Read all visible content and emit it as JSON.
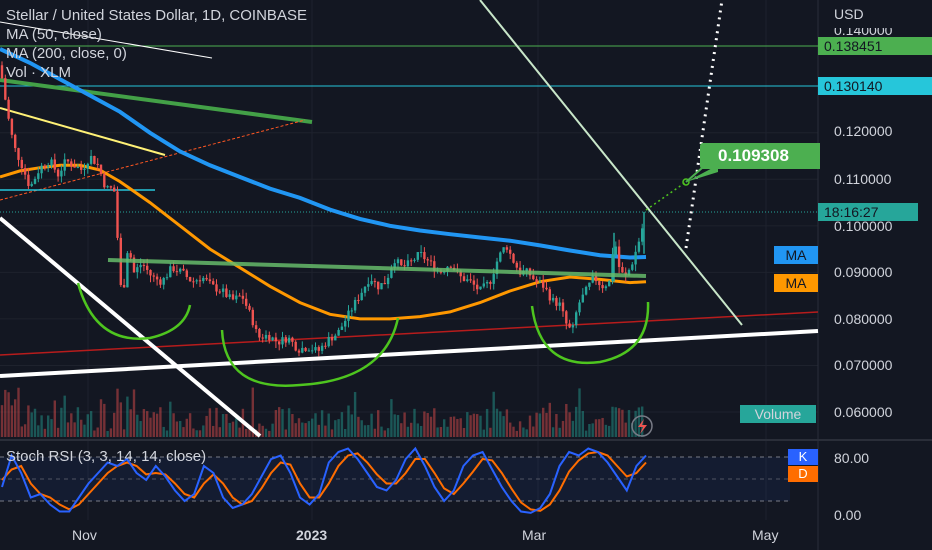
{
  "header": {
    "title": "Stellar / United States Dollar, 1D, COINBASE",
    "ma50": "MA (50, close)",
    "ma200": "MA (200, close, 0)",
    "vol": "Vol · XLM"
  },
  "stoch": {
    "label": "Stoch RSI (3, 3, 14, 14, close)",
    "k_tag": "K",
    "d_tag": "D",
    "ticks": [
      "80.00",
      "0.00"
    ]
  },
  "price_axis": {
    "currency": "USD",
    "ticks": [
      "0.120000",
      "0.110000",
      "0.100000",
      "0.090000",
      "0.080000",
      "0.070000",
      "0.060000"
    ],
    "partial_tick": "0.140000"
  },
  "tags": {
    "level_high": "0.138451",
    "level_mid": "0.130140",
    "countdown": "18:16:27",
    "target": "0.109308",
    "ma_label_1": "MA",
    "ma_label_2": "MA",
    "volume": "Volume"
  },
  "time_axis": [
    "Nov",
    "2023",
    "Mar",
    "May"
  ],
  "colors": {
    "background": "#131722",
    "up": "#26a69a",
    "down": "#ef5350",
    "ma50": "#ff9800",
    "ma200": "#2196f3",
    "level_high": "#4caf50",
    "level_mid": "#00bcd4",
    "target": "#4caf50",
    "pattern": "#4ec51f",
    "neckline": "#66bb6a",
    "stoch_k": "#2962ff",
    "stoch_d": "#ff6d00"
  },
  "chart_data": {
    "type": "candlestick",
    "title": "Stellar / United States Dollar, 1D, COINBASE",
    "y_range": [
      0.055,
      0.145
    ],
    "x_ticks": [
      "Nov",
      "2023",
      "Mar",
      "May"
    ],
    "levels": [
      0.138451,
      0.13014
    ],
    "target": 0.109308,
    "last_price_countdown": "18:16:27",
    "price_path": [
      [
        0,
        0.1345
      ],
      [
        8,
        0.1235
      ],
      [
        14,
        0.117
      ],
      [
        22,
        0.113
      ],
      [
        30,
        0.1082
      ],
      [
        40,
        0.1125
      ],
      [
        50,
        0.114
      ],
      [
        58,
        0.111
      ],
      [
        66,
        0.114
      ],
      [
        74,
        0.113
      ],
      [
        82,
        0.112
      ],
      [
        90,
        0.115
      ],
      [
        98,
        0.113
      ],
      [
        106,
        0.108
      ],
      [
        114,
        0.108
      ],
      [
        118,
        0.096
      ],
      [
        122,
        0.083
      ],
      [
        128,
        0.096
      ],
      [
        134,
        0.09
      ],
      [
        142,
        0.092
      ],
      [
        152,
        0.089
      ],
      [
        162,
        0.088
      ],
      [
        172,
        0.091
      ],
      [
        182,
        0.09
      ],
      [
        192,
        0.088
      ],
      [
        202,
        0.089
      ],
      [
        212,
        0.087
      ],
      [
        222,
        0.086
      ],
      [
        232,
        0.084
      ],
      [
        242,
        0.085
      ],
      [
        252,
        0.08
      ],
      [
        258,
        0.076
      ],
      [
        268,
        0.0765
      ],
      [
        278,
        0.075
      ],
      [
        288,
        0.076
      ],
      [
        298,
        0.0735
      ],
      [
        308,
        0.074
      ],
      [
        318,
        0.073
      ],
      [
        328,
        0.0755
      ],
      [
        338,
        0.077
      ],
      [
        346,
        0.08
      ],
      [
        354,
        0.083
      ],
      [
        362,
        0.086
      ],
      [
        370,
        0.089
      ],
      [
        378,
        0.087
      ],
      [
        386,
        0.088
      ],
      [
        394,
        0.093
      ],
      [
        402,
        0.091
      ],
      [
        410,
        0.092
      ],
      [
        420,
        0.094
      ],
      [
        430,
        0.092
      ],
      [
        440,
        0.09
      ],
      [
        450,
        0.092
      ],
      [
        460,
        0.089
      ],
      [
        470,
        0.088
      ],
      [
        480,
        0.086
      ],
      [
        490,
        0.088
      ],
      [
        498,
        0.093
      ],
      [
        506,
        0.096
      ],
      [
        512,
        0.093
      ],
      [
        520,
        0.09
      ],
      [
        528,
        0.09
      ],
      [
        536,
        0.088
      ],
      [
        544,
        0.087
      ],
      [
        552,
        0.084
      ],
      [
        560,
        0.083
      ],
      [
        566,
        0.079
      ],
      [
        572,
        0.077
      ],
      [
        578,
        0.083
      ],
      [
        586,
        0.086
      ],
      [
        594,
        0.089
      ],
      [
        602,
        0.087
      ],
      [
        610,
        0.088
      ],
      [
        614,
        0.098
      ],
      [
        620,
        0.09
      ],
      [
        626,
        0.089
      ],
      [
        632,
        0.092
      ],
      [
        638,
        0.096
      ],
      [
        644,
        0.101
      ]
    ],
    "ma50_path": [
      [
        0,
        0.1105
      ],
      [
        20,
        0.1118
      ],
      [
        40,
        0.1125
      ],
      [
        60,
        0.113
      ],
      [
        80,
        0.113
      ],
      [
        100,
        0.112
      ],
      [
        120,
        0.1095
      ],
      [
        150,
        0.105
      ],
      [
        180,
        0.1
      ],
      [
        210,
        0.095
      ],
      [
        240,
        0.091
      ],
      [
        270,
        0.087
      ],
      [
        300,
        0.0835
      ],
      [
        330,
        0.081
      ],
      [
        360,
        0.08
      ],
      [
        390,
        0.08
      ],
      [
        420,
        0.0805
      ],
      [
        450,
        0.0815
      ],
      [
        480,
        0.0835
      ],
      [
        510,
        0.086
      ],
      [
        540,
        0.088
      ],
      [
        570,
        0.089
      ],
      [
        600,
        0.0885
      ],
      [
        630,
        0.0878
      ],
      [
        646,
        0.088
      ]
    ],
    "ma200_path": [
      [
        0,
        0.138
      ],
      [
        30,
        0.135
      ],
      [
        60,
        0.1315
      ],
      [
        90,
        0.128
      ],
      [
        120,
        0.1245
      ],
      [
        150,
        0.12
      ],
      [
        180,
        0.116
      ],
      [
        210,
        0.113
      ],
      [
        240,
        0.1105
      ],
      [
        270,
        0.108
      ],
      [
        300,
        0.106
      ],
      [
        330,
        0.1035
      ],
      [
        360,
        0.1015
      ],
      [
        390,
        0.1
      ],
      [
        420,
        0.099
      ],
      [
        450,
        0.0982
      ],
      [
        480,
        0.0975
      ],
      [
        510,
        0.0968
      ],
      [
        540,
        0.0958
      ],
      [
        570,
        0.0947
      ],
      [
        600,
        0.0937
      ],
      [
        630,
        0.0932
      ],
      [
        646,
        0.0933
      ]
    ],
    "stoch_k": [
      40,
      85,
      60,
      25,
      30,
      15,
      5,
      5,
      25,
      45,
      60,
      75,
      70,
      80,
      60,
      50,
      70,
      55,
      35,
      20,
      30,
      70,
      60,
      25,
      10,
      15,
      30,
      55,
      80,
      85,
      60,
      25,
      15,
      30,
      75,
      90,
      95,
      80,
      60,
      40,
      35,
      50,
      80,
      95,
      70,
      40,
      20,
      35,
      70,
      85,
      90,
      65,
      40,
      20,
      5,
      3,
      10,
      30,
      70,
      90,
      85,
      95,
      90,
      75,
      55,
      35,
      70,
      85
    ],
    "stoch_d": [
      50,
      65,
      70,
      45,
      30,
      25,
      15,
      8,
      15,
      30,
      45,
      60,
      70,
      75,
      70,
      58,
      60,
      58,
      45,
      30,
      25,
      45,
      58,
      45,
      25,
      15,
      20,
      38,
      60,
      75,
      72,
      45,
      25,
      25,
      45,
      70,
      85,
      88,
      75,
      58,
      45,
      45,
      60,
      80,
      80,
      60,
      38,
      30,
      45,
      62,
      80,
      78,
      60,
      38,
      18,
      8,
      6,
      15,
      35,
      62,
      78,
      88,
      90,
      85,
      70,
      55,
      60,
      75
    ]
  }
}
